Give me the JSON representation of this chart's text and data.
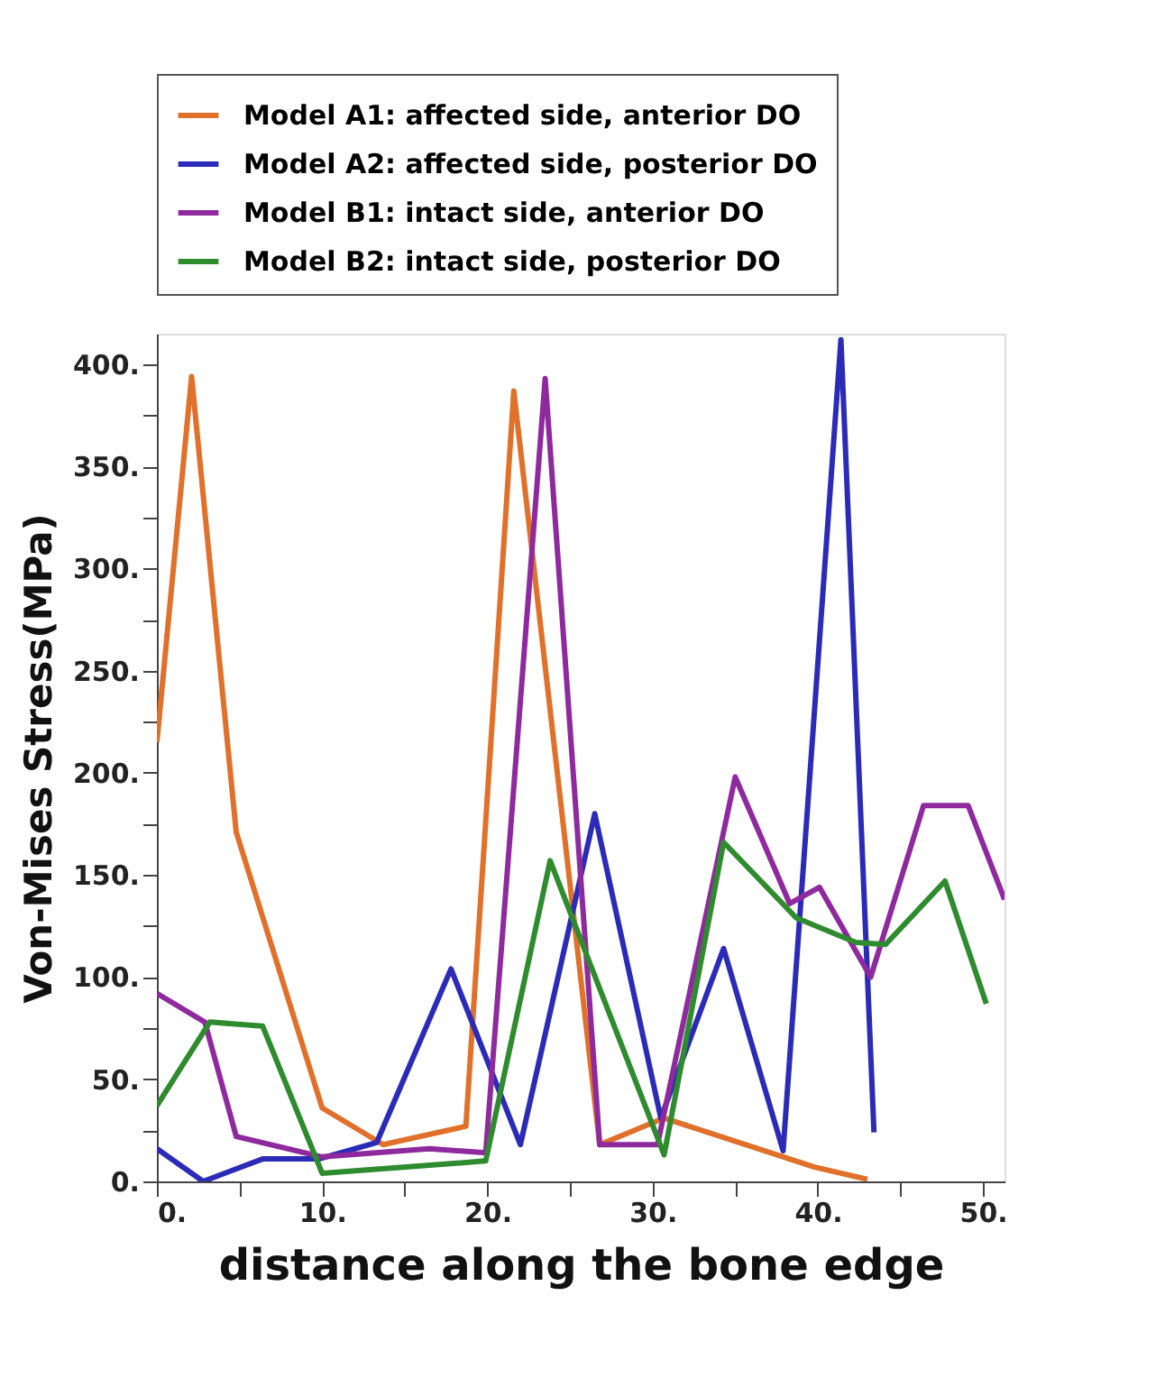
{
  "chart_data": {
    "type": "line",
    "xlabel": "distance along the bone edge",
    "ylabel": "Von-Mises Stress(MPa)",
    "xlim": [
      0,
      51.3
    ],
    "ylim": [
      0,
      415
    ],
    "xticks": [
      {
        "value": 0,
        "label": "0."
      },
      {
        "value": 5,
        "label": null
      },
      {
        "value": 10,
        "label": "10."
      },
      {
        "value": 15,
        "label": null
      },
      {
        "value": 20,
        "label": "20."
      },
      {
        "value": 25,
        "label": null
      },
      {
        "value": 30,
        "label": "30."
      },
      {
        "value": 35,
        "label": null
      },
      {
        "value": 40,
        "label": "40."
      },
      {
        "value": 45,
        "label": null
      },
      {
        "value": 50,
        "label": "50."
      }
    ],
    "yticks": [
      {
        "value": 0,
        "label": "0."
      },
      {
        "value": 25,
        "label": null
      },
      {
        "value": 50,
        "label": "50."
      },
      {
        "value": 75,
        "label": null
      },
      {
        "value": 100,
        "label": "100."
      },
      {
        "value": 125,
        "label": null
      },
      {
        "value": 150,
        "label": "150."
      },
      {
        "value": 175,
        "label": null
      },
      {
        "value": 200,
        "label": "200."
      },
      {
        "value": 225,
        "label": null
      },
      {
        "value": 250,
        "label": "250."
      },
      {
        "value": 275,
        "label": null
      },
      {
        "value": 300,
        "label": "300."
      },
      {
        "value": 325,
        "label": null
      },
      {
        "value": 350,
        "label": "350."
      },
      {
        "value": 375,
        "label": null
      },
      {
        "value": 400,
        "label": "400."
      }
    ],
    "grid": false,
    "legend": "top",
    "marker": "none",
    "line_style": "solid",
    "series": [
      {
        "name": "Model A1: affected side, anterior DO",
        "color": "#e0702a",
        "x": [
          0,
          2.1,
          4.8,
          10,
          13.7,
          18.7,
          21.6,
          26.8,
          30.7,
          39.8,
          43
        ],
        "values": [
          215,
          394,
          171,
          36,
          18,
          27,
          387,
          18,
          31,
          7,
          1
        ]
      },
      {
        "name": "Model A2: affected side, posterior DO",
        "color": "#2b2bb8",
        "x": [
          0,
          2.8,
          6.4,
          9.8,
          13.3,
          17.8,
          22,
          26.5,
          30.5,
          34.3,
          37.9,
          41.4,
          43.4
        ],
        "values": [
          16,
          0,
          11,
          11,
          19,
          104,
          18,
          180,
          31,
          114,
          15,
          412,
          24
        ]
      },
      {
        "name": "Model B1: intact side, anterior DO",
        "color": "#8e2a9e",
        "x": [
          0,
          2.9,
          4.8,
          10,
          16.5,
          19.9,
          23.5,
          26.8,
          30.3,
          35,
          38.3,
          40.1,
          43.2,
          46.4,
          49.1,
          51.3
        ],
        "values": [
          92,
          78,
          22,
          12,
          16,
          14,
          393,
          18,
          18,
          198,
          136,
          144,
          100,
          184,
          184,
          138
        ]
      },
      {
        "name": "Model B2: intact side, posterior DO",
        "color": "#2e8b2e",
        "x": [
          0,
          3.2,
          6.4,
          10,
          19.9,
          23.8,
          30.7,
          34.3,
          38.7,
          42.3,
          44.1,
          47.7,
          50.2
        ],
        "values": [
          37,
          78,
          76,
          4,
          10,
          157,
          13,
          166,
          129,
          117,
          116,
          147,
          87
        ]
      }
    ]
  }
}
